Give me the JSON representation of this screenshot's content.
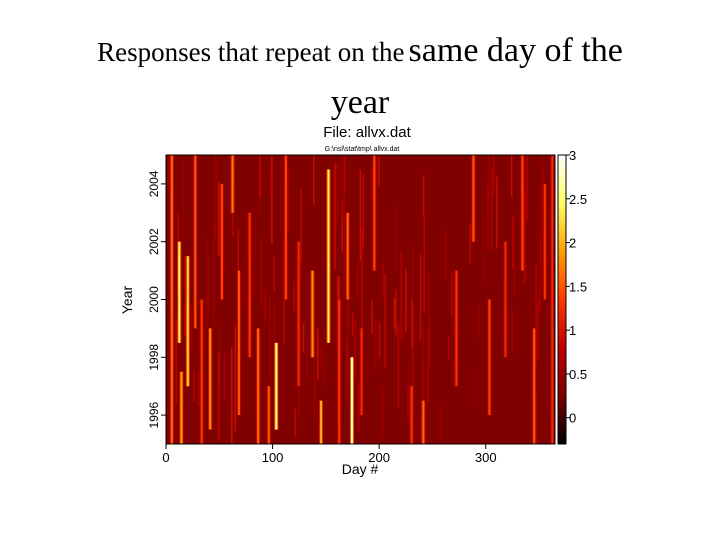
{
  "slide": {
    "title_part1": "Responses that repeat on the",
    "title_part2": "same day of the",
    "title_line2": "year"
  },
  "chart_data": {
    "type": "heatmap",
    "title": "File: allvx.dat",
    "subtitle": "G:\\nsl\\stat\\tmp\\ allvx.dat",
    "xlabel": "Day #",
    "ylabel": "Year",
    "xlim": [
      0,
      365
    ],
    "ylim": [
      1995,
      2005
    ],
    "xticks": [
      0,
      100,
      200,
      300
    ],
    "xtick_labels": [
      "0",
      "100",
      "200",
      "300"
    ],
    "yticks": [
      1996,
      1998,
      2000,
      2002,
      2004
    ],
    "ytick_labels": [
      "1996",
      "1998",
      "2000",
      "2002",
      "2004"
    ],
    "colorbar": {
      "range": [
        -0.3,
        3
      ],
      "ticks": [
        0,
        0.5,
        1,
        1.5,
        2,
        2.5,
        3
      ],
      "tick_labels": [
        "0",
        "0.5",
        "1",
        "1.5",
        "2",
        "2.5",
        "3"
      ],
      "colormap": [
        "#000000",
        "#7a0000",
        "#c20000",
        "#ff3a00",
        "#ffa000",
        "#ffff60",
        "#ffffff"
      ]
    },
    "background_value": 0.3,
    "streaks": [
      {
        "day": 5,
        "value": 1.6,
        "years": [
          1995.0,
          2005.0
        ]
      },
      {
        "day": 12,
        "value": 2.4,
        "years": [
          1998.5,
          2002.0
        ]
      },
      {
        "day": 14,
        "value": 1.9,
        "years": [
          1995.0,
          1997.5
        ]
      },
      {
        "day": 20,
        "value": 2.2,
        "years": [
          1997.0,
          2001.5
        ]
      },
      {
        "day": 27,
        "value": 1.5,
        "years": [
          1999.0,
          2005.0
        ]
      },
      {
        "day": 33,
        "value": 1.3,
        "years": [
          1995.0,
          2000.0
        ]
      },
      {
        "day": 41,
        "value": 1.8,
        "years": [
          1995.5,
          1999.0
        ]
      },
      {
        "day": 52,
        "value": 1.4,
        "years": [
          2000.0,
          2004.0
        ]
      },
      {
        "day": 62,
        "value": 1.7,
        "years": [
          2003.0,
          2005.0
        ]
      },
      {
        "day": 68,
        "value": 1.5,
        "years": [
          1996.0,
          2001.0
        ]
      },
      {
        "day": 78,
        "value": 1.3,
        "years": [
          1998.0,
          2003.0
        ]
      },
      {
        "day": 86,
        "value": 1.6,
        "years": [
          1995.0,
          1999.0
        ]
      },
      {
        "day": 96,
        "value": 1.5,
        "years": [
          1995.0,
          1997.0
        ]
      },
      {
        "day": 103,
        "value": 2.6,
        "years": [
          1995.5,
          1998.5
        ]
      },
      {
        "day": 112,
        "value": 1.4,
        "years": [
          2000.0,
          2005.0
        ]
      },
      {
        "day": 124,
        "value": 1.2,
        "years": [
          1997.0,
          2002.0
        ]
      },
      {
        "day": 137,
        "value": 1.8,
        "years": [
          1998.0,
          2001.0
        ]
      },
      {
        "day": 145,
        "value": 2.0,
        "years": [
          1995.0,
          1996.5
        ]
      },
      {
        "day": 152,
        "value": 2.4,
        "years": [
          1998.5,
          2004.5
        ]
      },
      {
        "day": 162,
        "value": 1.3,
        "years": [
          1995.0,
          2000.0
        ]
      },
      {
        "day": 170,
        "value": 1.6,
        "years": [
          2000.0,
          2003.0
        ]
      },
      {
        "day": 174,
        "value": 2.8,
        "years": [
          1995.0,
          1998.0
        ]
      },
      {
        "day": 183,
        "value": 1.2,
        "years": [
          1996.0,
          1999.0
        ]
      },
      {
        "day": 195,
        "value": 1.4,
        "years": [
          2001.0,
          2005.0
        ]
      },
      {
        "day": 230,
        "value": 1.3,
        "years": [
          1995.0,
          1997.0
        ]
      },
      {
        "day": 241,
        "value": 1.6,
        "years": [
          1995.0,
          1996.5
        ]
      },
      {
        "day": 272,
        "value": 1.3,
        "years": [
          1997.0,
          2001.0
        ]
      },
      {
        "day": 288,
        "value": 1.5,
        "years": [
          2002.0,
          2005.0
        ]
      },
      {
        "day": 303,
        "value": 1.4,
        "years": [
          1996.0,
          2000.0
        ]
      },
      {
        "day": 318,
        "value": 1.2,
        "years": [
          1998.0,
          2002.0
        ]
      },
      {
        "day": 334,
        "value": 1.4,
        "years": [
          2001.0,
          2005.0
        ]
      },
      {
        "day": 345,
        "value": 1.5,
        "years": [
          1995.0,
          1999.0
        ]
      },
      {
        "day": 355,
        "value": 1.3,
        "years": [
          2000.0,
          2004.0
        ]
      },
      {
        "day": 362,
        "value": 1.2,
        "years": [
          1995.0,
          2005.0
        ]
      }
    ]
  }
}
